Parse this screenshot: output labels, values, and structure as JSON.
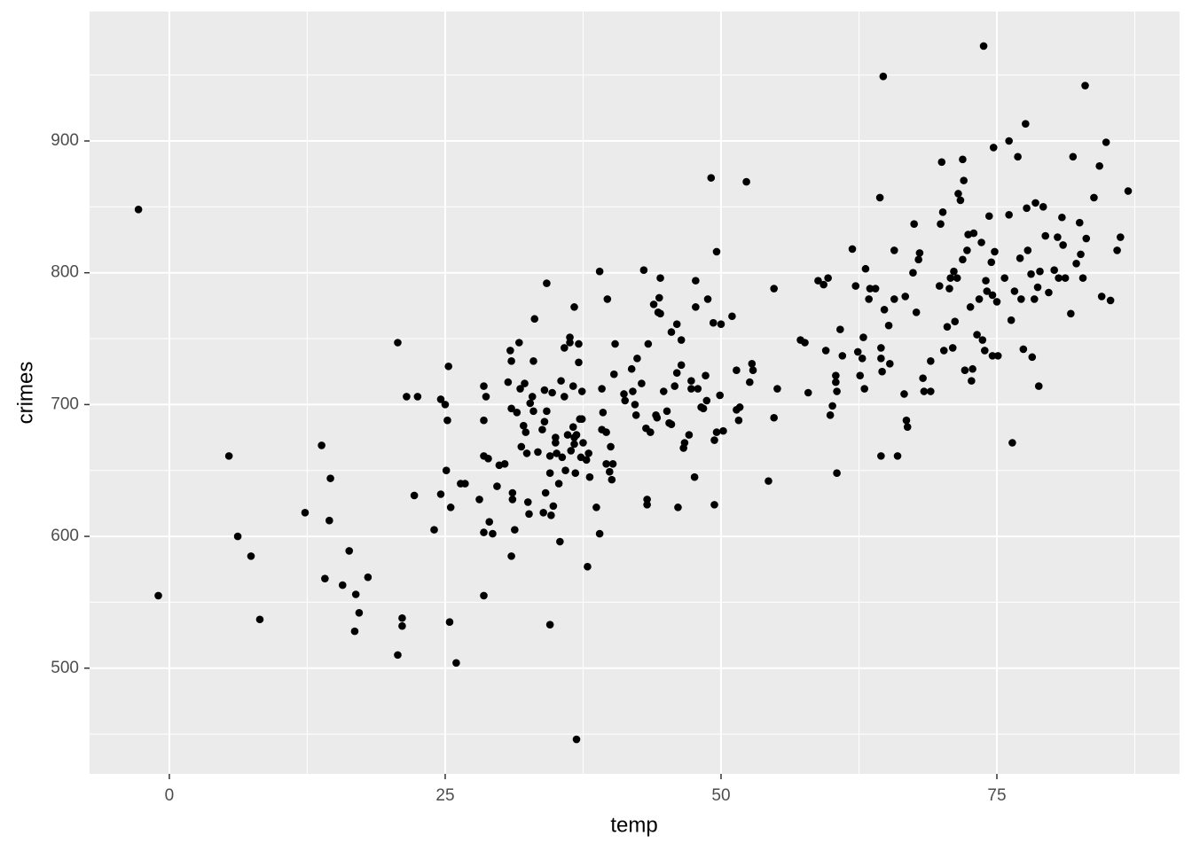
{
  "chart_data": {
    "type": "scatter",
    "x_label": "temp",
    "y_label": "crimes",
    "color": "#000000",
    "panel_background": "#EBEBEB",
    "grid_color": "#FFFFFF",
    "grid": true,
    "xlim": [
      -7.23,
      91.56
    ],
    "ylim": [
      419.8,
      998.2
    ],
    "xticks": [
      0,
      25,
      50,
      75
    ],
    "yticks": [
      500,
      600,
      700,
      800,
      900
    ],
    "x_minor_breaks": [
      12.5,
      37.5,
      62.5,
      87.5
    ],
    "y_minor_breaks": [
      450,
      550,
      650,
      750,
      850,
      950
    ],
    "x": [
      -2.8,
      -1.0,
      5.4,
      6.2,
      7.4,
      8.2,
      12.3,
      13.8,
      14.1,
      14.6,
      14.5,
      15.7,
      16.3,
      16.8,
      16.9,
      17.2,
      18.0,
      20.7,
      20.7,
      21.1,
      21.1,
      21.5,
      22.5,
      22.2,
      24.0,
      24.6,
      24.6,
      25.0,
      25.1,
      25.2,
      25.3,
      25.4,
      25.5,
      26.0,
      26.4,
      26.8,
      28.1,
      28.5,
      28.7,
      28.5,
      28.5,
      28.9,
      28.5,
      29.0,
      29.3,
      28.5,
      29.7,
      29.9,
      30.4,
      30.7,
      30.9,
      31.0,
      31.0,
      31.1,
      31.1,
      31.3,
      31.0,
      31.5,
      31.7,
      31.8,
      31.9,
      32.1,
      32.2,
      32.3,
      32.4,
      32.5,
      32.6,
      32.7,
      32.9,
      33.0,
      33.0,
      33.1,
      33.4,
      33.8,
      33.9,
      34.0,
      34.0,
      34.1,
      34.2,
      34.2,
      34.5,
      34.5,
      34.5,
      34.6,
      34.7,
      34.8,
      35.0,
      35.0,
      35.1,
      35.3,
      35.4,
      35.5,
      35.6,
      35.8,
      35.8,
      35.9,
      36.1,
      36.3,
      36.3,
      36.4,
      36.6,
      36.6,
      36.7,
      36.7,
      36.7,
      36.8,
      36.9,
      36.9,
      37.1,
      37.1,
      37.2,
      37.3,
      37.4,
      37.4,
      37.5,
      37.8,
      37.9,
      38.0,
      38.1,
      38.7,
      39.0,
      39.0,
      39.2,
      39.2,
      39.3,
      39.6,
      39.6,
      39.7,
      39.9,
      40.0,
      40.1,
      40.2,
      40.3,
      40.4,
      41.2,
      41.3,
      41.9,
      42.0,
      42.2,
      42.3,
      42.4,
      42.8,
      43.0,
      43.2,
      43.3,
      43.3,
      43.4,
      43.6,
      43.9,
      44.1,
      44.2,
      44.3,
      44.4,
      44.5,
      44.5,
      44.8,
      45.1,
      45.3,
      45.5,
      45.5,
      45.8,
      46.0,
      46.0,
      46.1,
      46.4,
      46.4,
      46.6,
      46.7,
      47.1,
      47.3,
      47.3,
      47.6,
      47.7,
      47.7,
      47.9,
      48.2,
      48.4,
      48.6,
      48.7,
      48.8,
      49.1,
      49.3,
      49.4,
      49.4,
      49.6,
      49.6,
      49.9,
      50.0,
      50.2,
      51.0,
      51.4,
      51.4,
      51.6,
      51.7,
      52.3,
      52.6,
      52.8,
      52.9,
      54.3,
      54.8,
      54.8,
      55.1,
      57.2,
      57.6,
      57.9,
      58.8,
      59.3,
      59.5,
      59.7,
      59.9,
      60.1,
      60.4,
      60.4,
      60.5,
      60.5,
      60.8,
      61.0,
      61.9,
      62.2,
      62.4,
      62.6,
      62.8,
      62.9,
      63.0,
      63.1,
      63.4,
      63.5,
      64.0,
      64.4,
      64.5,
      64.5,
      64.5,
      64.6,
      64.7,
      64.8,
      65.2,
      65.3,
      65.7,
      65.7,
      66.0,
      66.6,
      66.7,
      66.8,
      66.9,
      67.4,
      67.5,
      67.7,
      67.9,
      68.0,
      68.3,
      68.4,
      69.0,
      69.0,
      69.8,
      69.9,
      70.0,
      70.1,
      70.2,
      70.5,
      70.7,
      70.8,
      71.0,
      71.1,
      71.2,
      71.4,
      71.5,
      71.7,
      71.9,
      71.9,
      72.0,
      72.1,
      72.3,
      72.4,
      72.6,
      72.7,
      72.8,
      72.9,
      73.2,
      73.4,
      73.6,
      73.7,
      73.8,
      73.9,
      74.0,
      74.1,
      74.3,
      74.5,
      74.6,
      74.6,
      74.7,
      74.8,
      75.0,
      75.1,
      75.7,
      76.1,
      76.1,
      76.3,
      76.4,
      76.6,
      76.9,
      77.1,
      77.2,
      77.4,
      77.6,
      77.7,
      77.8,
      78.1,
      78.2,
      78.4,
      78.5,
      78.7,
      78.8,
      78.9,
      79.2,
      79.4,
      79.7,
      80.2,
      80.5,
      80.6,
      80.9,
      81.0,
      81.2,
      81.7,
      81.9,
      82.2,
      82.5,
      82.6,
      82.8,
      83.0,
      83.1,
      83.8,
      84.3,
      84.5,
      84.9,
      85.3,
      85.9,
      86.2,
      86.9
    ],
    "values": [
      848,
      555,
      661,
      600,
      585,
      537,
      618,
      669,
      568,
      644,
      612,
      563,
      589,
      528,
      556,
      542,
      569,
      747,
      510,
      538,
      532,
      706,
      706,
      631,
      605,
      632,
      704,
      700,
      650,
      688,
      729,
      535,
      622,
      504,
      640,
      640,
      628,
      714,
      706,
      688,
      661,
      659,
      603,
      611,
      602,
      555,
      638,
      654,
      655,
      717,
      741,
      733,
      697,
      633,
      628,
      605,
      585,
      694,
      747,
      712,
      668,
      684,
      716,
      679,
      663,
      626,
      617,
      701,
      706,
      695,
      733,
      765,
      664,
      681,
      618,
      711,
      687,
      633,
      792,
      695,
      661,
      648,
      533,
      616,
      709,
      623,
      675,
      671,
      663,
      640,
      596,
      718,
      660,
      743,
      706,
      650,
      677,
      751,
      747,
      665,
      714,
      683,
      675,
      774,
      670,
      648,
      446,
      677,
      732,
      746,
      689,
      660,
      710,
      689,
      671,
      658,
      577,
      663,
      645,
      622,
      801,
      602,
      712,
      681,
      694,
      679,
      655,
      780,
      649,
      668,
      643,
      655,
      723,
      746,
      708,
      703,
      727,
      710,
      700,
      692,
      735,
      716,
      802,
      682,
      628,
      624,
      746,
      679,
      776,
      692,
      690,
      770,
      781,
      796,
      769,
      710,
      695,
      686,
      755,
      685,
      714,
      761,
      724,
      622,
      730,
      749,
      667,
      671,
      677,
      718,
      712,
      645,
      774,
      794,
      712,
      698,
      697,
      722,
      703,
      780,
      872,
      762,
      624,
      673,
      679,
      816,
      707,
      761,
      680,
      767,
      726,
      696,
      688,
      698,
      869,
      717,
      731,
      726,
      642,
      690,
      788,
      712,
      749,
      747,
      709,
      794,
      791,
      741,
      796,
      692,
      699,
      722,
      717,
      710,
      648,
      757,
      737,
      818,
      790,
      740,
      722,
      735,
      751,
      712,
      803,
      780,
      788,
      788,
      857,
      661,
      735,
      743,
      725,
      949,
      772,
      760,
      731,
      780,
      817,
      661,
      708,
      782,
      688,
      683,
      800,
      837,
      770,
      810,
      815,
      720,
      710,
      710,
      733,
      790,
      837,
      884,
      846,
      741,
      759,
      788,
      796,
      743,
      801,
      763,
      796,
      860,
      855,
      810,
      886,
      870,
      726,
      817,
      829,
      774,
      718,
      727,
      830,
      753,
      780,
      823,
      749,
      972,
      741,
      794,
      786,
      843,
      808,
      783,
      737,
      895,
      816,
      778,
      737,
      796,
      900,
      844,
      764,
      671,
      786,
      888,
      811,
      780,
      742,
      913,
      849,
      817,
      799,
      736,
      780,
      853,
      789,
      714,
      801,
      850,
      828,
      785,
      802,
      827,
      796,
      842,
      821,
      796,
      769,
      888,
      807,
      838,
      814,
      796,
      942,
      826,
      857,
      881,
      782,
      899,
      779,
      817,
      827,
      862
    ]
  }
}
